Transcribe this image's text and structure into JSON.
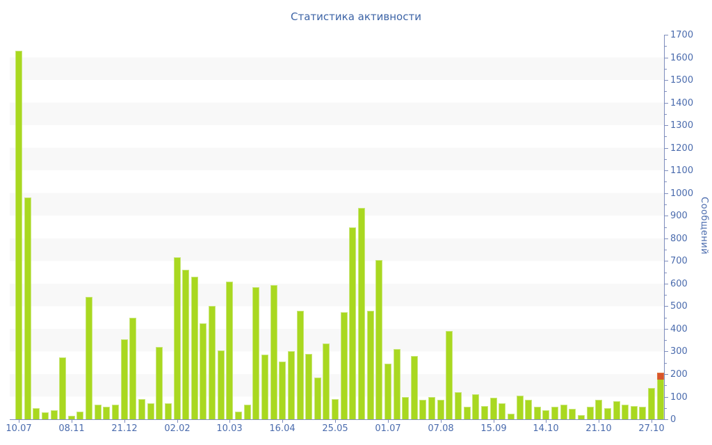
{
  "title": "Статистика активности",
  "y_axis": {
    "label": "Сообщений",
    "tick_labels": [
      "0",
      "100",
      "200",
      "300",
      "400",
      "500",
      "600",
      "700",
      "800",
      "900",
      "1000",
      "1100",
      "1200",
      "1300",
      "1400",
      "1500",
      "1600",
      "1700"
    ],
    "major_tick_step": 100,
    "minor_tick_step": 50
  },
  "x_axis": {
    "labels": [
      "10.07",
      "08.11",
      "21.12",
      "02.02",
      "10.03",
      "16.04",
      "25.05",
      "01.07",
      "07.08",
      "15.09",
      "14.10",
      "21.10",
      "27.10"
    ],
    "label_every_n_bars": 6
  },
  "chart_data": {
    "type": "bar",
    "title": "Статистика активности",
    "xlabel": "",
    "ylabel": "Сообщений",
    "ylim": [
      0,
      1700
    ],
    "grid": "horizontal gray bands every 100 units (odd bands shaded)",
    "legend_position": "none",
    "x_tick_labels": [
      "10.07",
      "08.11",
      "21.12",
      "02.02",
      "10.03",
      "16.04",
      "25.05",
      "01.07",
      "07.08",
      "15.09",
      "14.10",
      "21.10",
      "27.10"
    ],
    "values": [
      1630,
      980,
      50,
      30,
      40,
      275,
      15,
      35,
      540,
      65,
      55,
      65,
      355,
      450,
      90,
      70,
      320,
      70,
      715,
      660,
      630,
      425,
      500,
      305,
      610,
      35,
      65,
      585,
      285,
      595,
      255,
      300,
      480,
      290,
      185,
      335,
      90,
      475,
      850,
      935,
      480,
      705,
      245,
      310,
      100,
      280,
      85,
      100,
      85,
      390,
      120,
      55,
      110,
      60,
      95,
      70,
      25,
      105,
      85,
      55,
      40,
      55,
      65,
      45,
      20,
      55,
      85,
      50,
      80,
      65,
      60,
      55,
      140,
      205
    ],
    "stacked_last_bar": {
      "index": 73,
      "base_value": 175,
      "top_segment_value": 30,
      "top_segment_color": "#d8552c"
    }
  },
  "colors": {
    "bar_fill": "#a9d820",
    "bar_edge": "#c9e67a",
    "highlight_segment": "#d8552c",
    "axis_line": "#7d8cbc",
    "tick_label": "#4a6bad",
    "title": "#3d64a6",
    "stripe": "#f8f8f8",
    "background": "#ffffff"
  }
}
